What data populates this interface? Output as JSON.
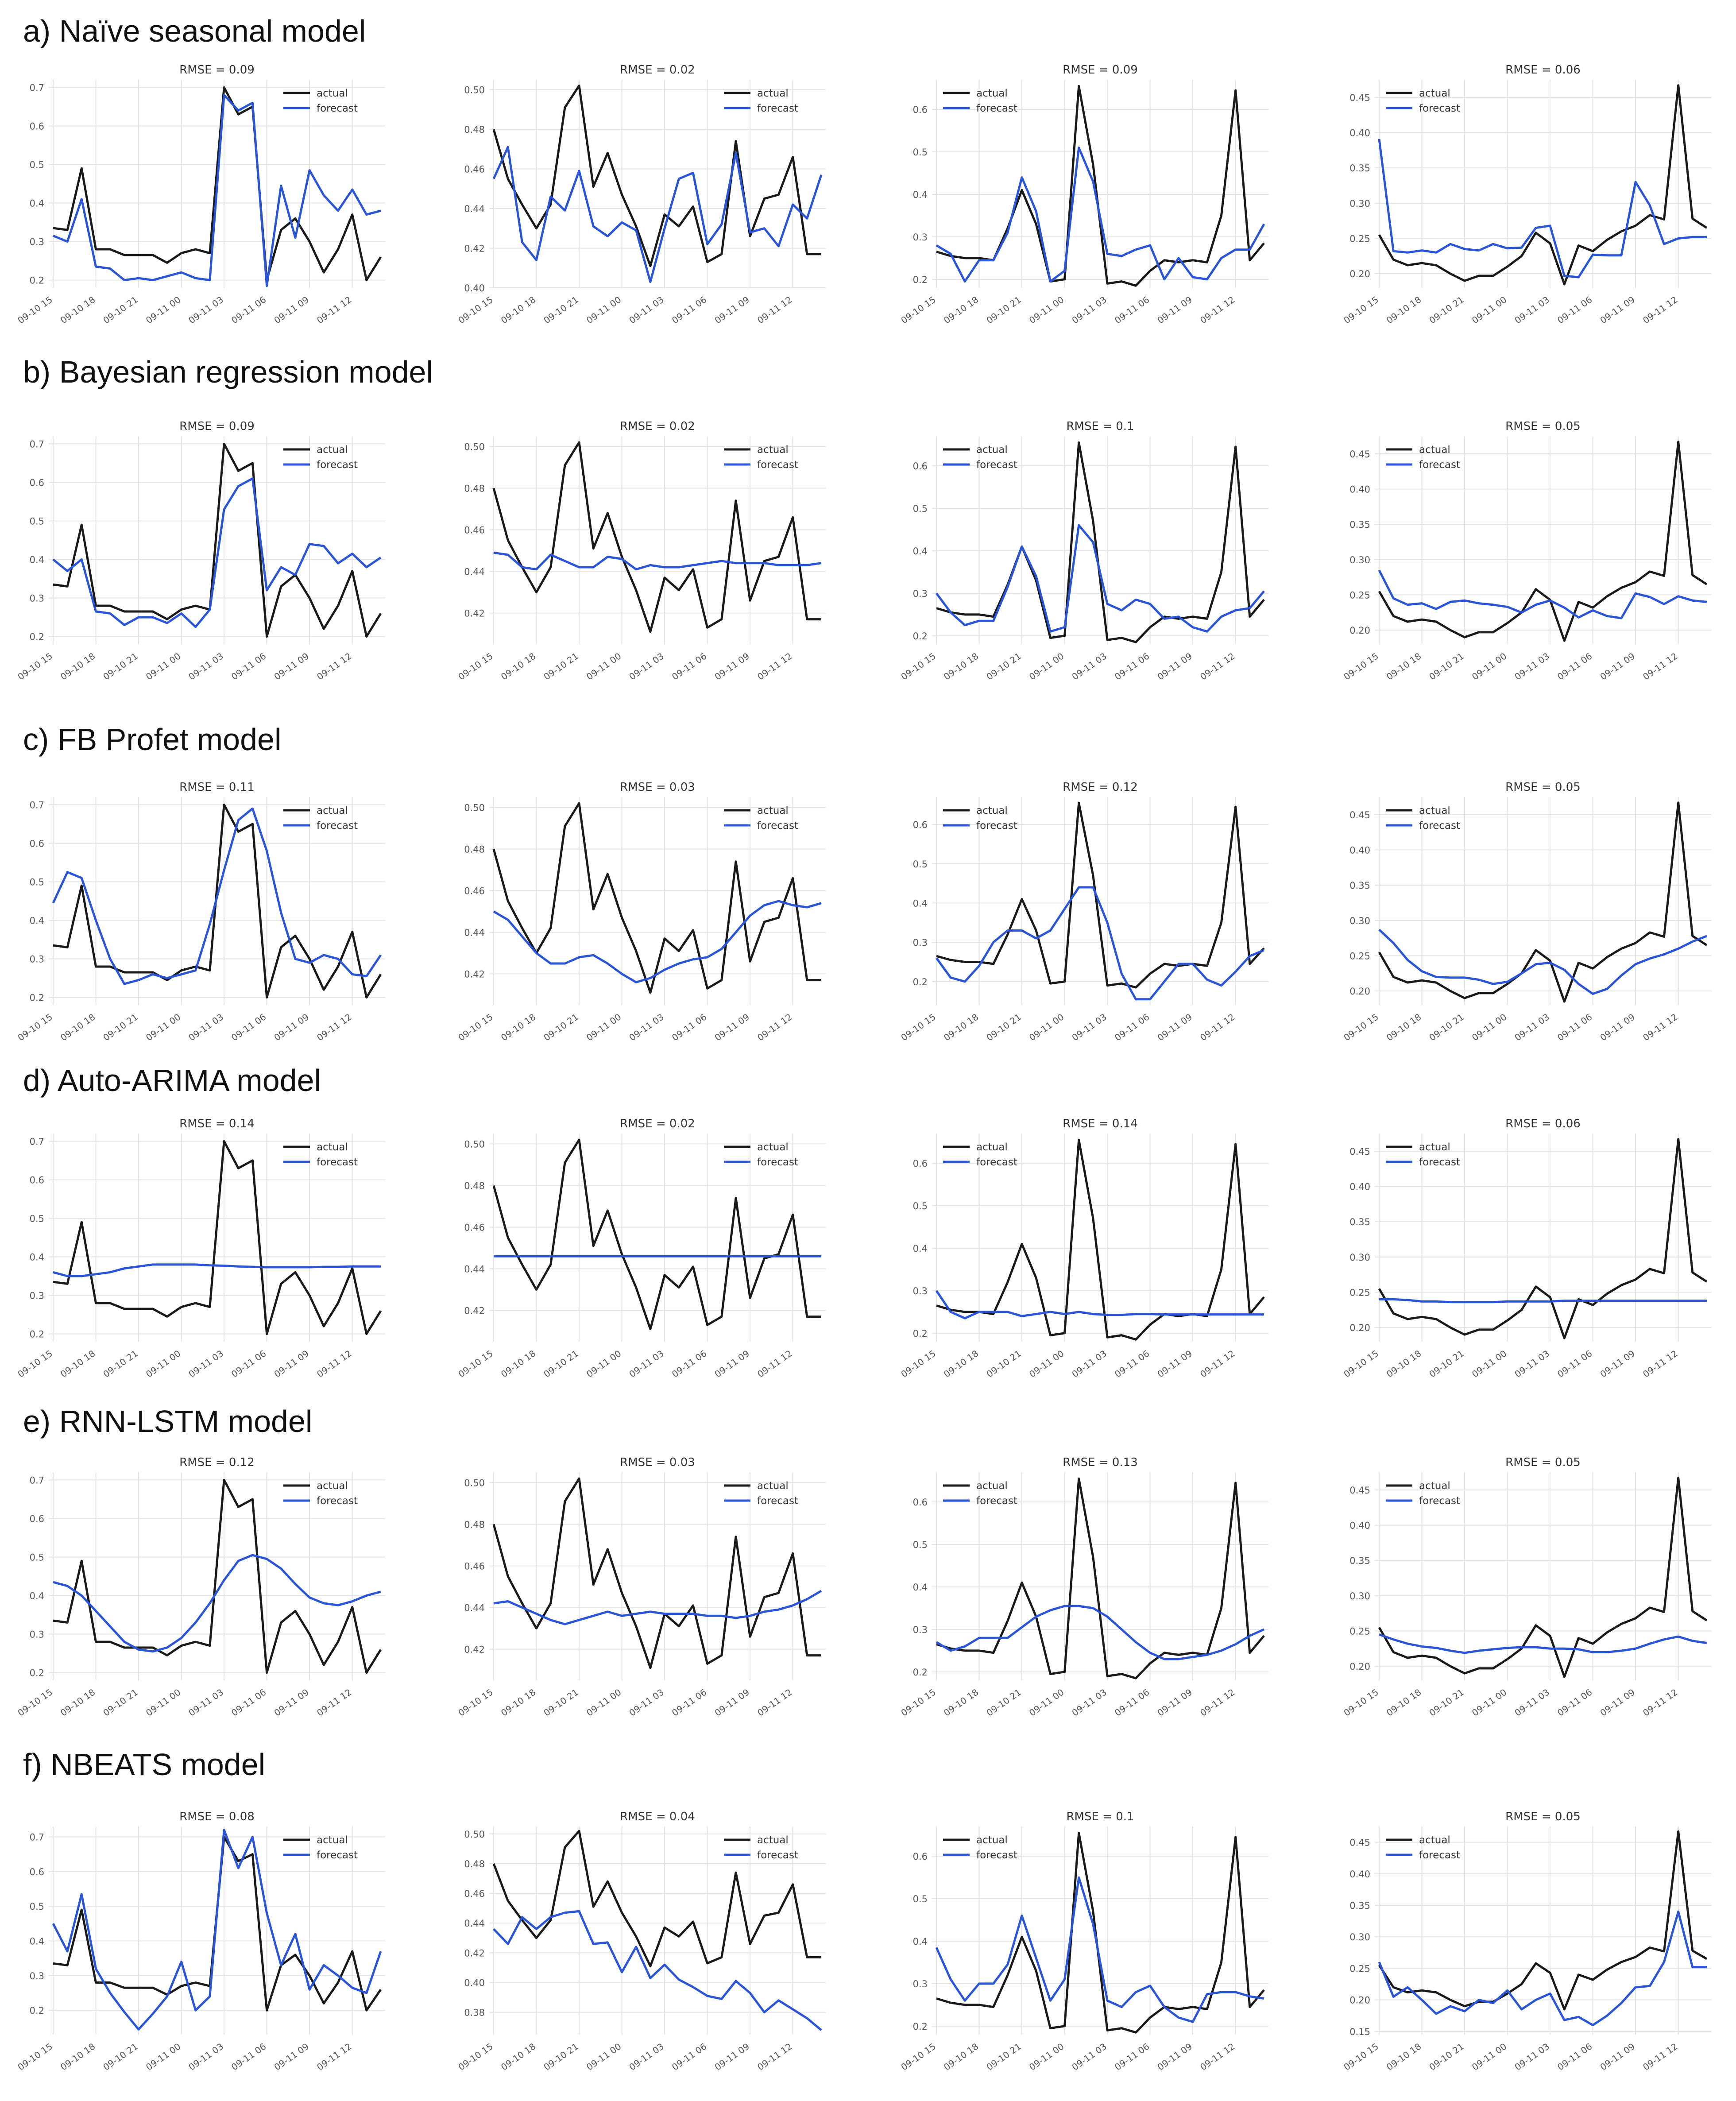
{
  "colors": {
    "actual": "#1a1a1a",
    "forecast": "#2a55d6",
    "grid": "#e3e3e3",
    "tick": "#555555"
  },
  "legend": {
    "actual": "actual",
    "forecast": "forecast"
  },
  "xticks": [
    "09-10 15",
    "09-10 18",
    "09-10 21",
    "09-11 00",
    "09-11 03",
    "09-11 06",
    "09-11 09",
    "09-11 12"
  ],
  "series_meta": {
    "n_points": 24,
    "first_tick_index": 0,
    "tick_step": 3
  },
  "actual": [
    [
      0.335,
      0.33,
      0.49,
      0.28,
      0.28,
      0.265,
      0.265,
      0.265,
      0.245,
      0.27,
      0.28,
      0.27,
      0.7,
      0.63,
      0.65,
      0.2,
      0.33,
      0.36,
      0.3,
      0.22,
      0.28,
      0.37,
      0.2,
      0.26
    ],
    [
      0.48,
      0.455,
      0.442,
      0.43,
      0.442,
      0.491,
      0.502,
      0.451,
      0.468,
      0.447,
      0.431,
      0.411,
      0.437,
      0.431,
      0.441,
      0.413,
      0.417,
      0.474,
      0.426,
      0.445,
      0.447,
      0.466,
      0.417,
      0.417
    ],
    [
      0.265,
      0.255,
      0.25,
      0.25,
      0.245,
      0.32,
      0.41,
      0.33,
      0.195,
      0.2,
      0.655,
      0.47,
      0.19,
      0.195,
      0.185,
      0.22,
      0.245,
      0.24,
      0.245,
      0.24,
      0.35,
      0.645,
      0.245,
      0.285
    ],
    [
      0.255,
      0.22,
      0.212,
      0.215,
      0.212,
      0.2,
      0.19,
      0.197,
      0.197,
      0.21,
      0.225,
      0.258,
      0.243,
      0.185,
      0.24,
      0.232,
      0.248,
      0.26,
      0.268,
      0.283,
      0.277,
      0.467,
      0.278,
      0.265
    ]
  ],
  "rows": [
    {
      "title": "a) Naïve seasonal model",
      "charts": [
        {
          "rmse": "RMSE = 0.09",
          "forecast": [
            0.315,
            0.3,
            0.41,
            0.235,
            0.23,
            0.2,
            0.205,
            0.2,
            0.21,
            0.22,
            0.205,
            0.2,
            0.68,
            0.64,
            0.66,
            0.185,
            0.445,
            0.31,
            0.485,
            0.42,
            0.38,
            0.435,
            0.37,
            0.38
          ]
        },
        {
          "rmse": "RMSE = 0.02",
          "forecast": [
            0.455,
            0.471,
            0.423,
            0.414,
            0.446,
            0.439,
            0.459,
            0.431,
            0.426,
            0.433,
            0.429,
            0.403,
            0.43,
            0.455,
            0.458,
            0.422,
            0.432,
            0.468,
            0.428,
            0.43,
            0.421,
            0.442,
            0.435,
            0.457
          ]
        },
        {
          "rmse": "RMSE = 0.09",
          "forecast": [
            0.28,
            0.26,
            0.195,
            0.245,
            0.245,
            0.31,
            0.44,
            0.36,
            0.195,
            0.22,
            0.51,
            0.43,
            0.26,
            0.255,
            0.27,
            0.28,
            0.2,
            0.25,
            0.205,
            0.2,
            0.25,
            0.27,
            0.27,
            0.33
          ]
        },
        {
          "rmse": "RMSE = 0.06",
          "forecast": [
            0.391,
            0.232,
            0.23,
            0.233,
            0.23,
            0.242,
            0.235,
            0.233,
            0.242,
            0.236,
            0.237,
            0.265,
            0.268,
            0.197,
            0.195,
            0.227,
            0.226,
            0.226,
            0.33,
            0.297,
            0.242,
            0.25,
            0.252,
            0.252
          ]
        }
      ]
    },
    {
      "title": "b) Bayesian regression model",
      "charts": [
        {
          "rmse": "RMSE = 0.09",
          "forecast": [
            0.4,
            0.37,
            0.4,
            0.265,
            0.26,
            0.23,
            0.25,
            0.25,
            0.235,
            0.26,
            0.225,
            0.27,
            0.53,
            0.59,
            0.61,
            0.32,
            0.38,
            0.36,
            0.44,
            0.435,
            0.39,
            0.415,
            0.38,
            0.405
          ]
        },
        {
          "rmse": "RMSE = 0.02",
          "forecast": [
            0.449,
            0.448,
            0.442,
            0.441,
            0.448,
            0.445,
            0.442,
            0.442,
            0.447,
            0.446,
            0.441,
            0.443,
            0.442,
            0.442,
            0.443,
            0.444,
            0.445,
            0.444,
            0.444,
            0.444,
            0.443,
            0.443,
            0.443,
            0.444
          ]
        },
        {
          "rmse": "RMSE = 0.1",
          "forecast": [
            0.3,
            0.255,
            0.225,
            0.235,
            0.235,
            0.315,
            0.41,
            0.34,
            0.21,
            0.22,
            0.46,
            0.42,
            0.275,
            0.26,
            0.285,
            0.275,
            0.24,
            0.245,
            0.22,
            0.21,
            0.245,
            0.26,
            0.265,
            0.305
          ]
        },
        {
          "rmse": "RMSE = 0.05",
          "forecast": [
            0.285,
            0.245,
            0.236,
            0.238,
            0.23,
            0.24,
            0.242,
            0.238,
            0.236,
            0.233,
            0.225,
            0.236,
            0.242,
            0.232,
            0.218,
            0.228,
            0.22,
            0.217,
            0.252,
            0.247,
            0.237,
            0.248,
            0.242,
            0.24
          ]
        }
      ]
    },
    {
      "title": "c) FB Profet  model",
      "charts": [
        {
          "rmse": "RMSE = 0.11",
          "forecast": [
            0.445,
            0.525,
            0.51,
            0.4,
            0.3,
            0.235,
            0.245,
            0.26,
            0.25,
            0.26,
            0.27,
            0.39,
            0.53,
            0.66,
            0.69,
            0.58,
            0.42,
            0.3,
            0.29,
            0.31,
            0.3,
            0.26,
            0.255,
            0.31
          ]
        },
        {
          "rmse": "RMSE = 0.03",
          "forecast": [
            0.45,
            0.446,
            0.438,
            0.43,
            0.425,
            0.425,
            0.428,
            0.429,
            0.425,
            0.42,
            0.416,
            0.418,
            0.422,
            0.425,
            0.427,
            0.428,
            0.432,
            0.44,
            0.448,
            0.453,
            0.455,
            0.453,
            0.452,
            0.454
          ]
        },
        {
          "rmse": "RMSE = 0.12",
          "forecast": [
            0.26,
            0.21,
            0.2,
            0.24,
            0.3,
            0.33,
            0.33,
            0.31,
            0.33,
            0.385,
            0.44,
            0.44,
            0.35,
            0.22,
            0.155,
            0.155,
            0.2,
            0.245,
            0.245,
            0.205,
            0.19,
            0.225,
            0.265,
            0.28
          ]
        },
        {
          "rmse": "RMSE = 0.05",
          "forecast": [
            0.287,
            0.268,
            0.244,
            0.228,
            0.22,
            0.219,
            0.219,
            0.216,
            0.21,
            0.213,
            0.225,
            0.238,
            0.24,
            0.23,
            0.21,
            0.196,
            0.203,
            0.222,
            0.238,
            0.246,
            0.252,
            0.26,
            0.27,
            0.278
          ]
        }
      ]
    },
    {
      "title": "d) Auto-ARIMA model",
      "charts": [
        {
          "rmse": "RMSE = 0.14",
          "forecast": [
            0.36,
            0.35,
            0.35,
            0.355,
            0.36,
            0.37,
            0.375,
            0.38,
            0.38,
            0.38,
            0.38,
            0.378,
            0.377,
            0.375,
            0.374,
            0.373,
            0.373,
            0.373,
            0.373,
            0.374,
            0.374,
            0.375,
            0.375,
            0.375
          ]
        },
        {
          "rmse": "RMSE = 0.02",
          "forecast": [
            0.446,
            0.446,
            0.446,
            0.446,
            0.446,
            0.446,
            0.446,
            0.446,
            0.446,
            0.446,
            0.446,
            0.446,
            0.446,
            0.446,
            0.446,
            0.446,
            0.446,
            0.446,
            0.446,
            0.446,
            0.446,
            0.446,
            0.446,
            0.446
          ]
        },
        {
          "rmse": "RMSE = 0.14",
          "forecast": [
            0.3,
            0.25,
            0.235,
            0.25,
            0.25,
            0.25,
            0.24,
            0.245,
            0.25,
            0.245,
            0.25,
            0.245,
            0.243,
            0.243,
            0.245,
            0.245,
            0.244,
            0.244,
            0.244,
            0.244,
            0.244,
            0.244,
            0.244,
            0.244
          ]
        },
        {
          "rmse": "RMSE = 0.06",
          "forecast": [
            0.24,
            0.24,
            0.239,
            0.237,
            0.237,
            0.236,
            0.236,
            0.236,
            0.236,
            0.237,
            0.237,
            0.237,
            0.237,
            0.238,
            0.238,
            0.238,
            0.238,
            0.238,
            0.238,
            0.238,
            0.238,
            0.238,
            0.238,
            0.238
          ]
        }
      ]
    },
    {
      "title": "e) RNN-LSTM model",
      "charts": [
        {
          "rmse": "RMSE = 0.12",
          "forecast": [
            0.435,
            0.425,
            0.4,
            0.36,
            0.32,
            0.28,
            0.26,
            0.255,
            0.265,
            0.29,
            0.33,
            0.38,
            0.44,
            0.49,
            0.505,
            0.495,
            0.47,
            0.43,
            0.395,
            0.38,
            0.375,
            0.385,
            0.4,
            0.41
          ]
        },
        {
          "rmse": "RMSE = 0.03",
          "forecast": [
            0.442,
            0.443,
            0.44,
            0.437,
            0.434,
            0.432,
            0.434,
            0.436,
            0.438,
            0.436,
            0.437,
            0.438,
            0.437,
            0.437,
            0.437,
            0.436,
            0.436,
            0.435,
            0.436,
            0.438,
            0.439,
            0.441,
            0.444,
            0.448
          ]
        },
        {
          "rmse": "RMSE = 0.13",
          "forecast": [
            0.27,
            0.25,
            0.26,
            0.28,
            0.28,
            0.28,
            0.305,
            0.33,
            0.345,
            0.355,
            0.355,
            0.35,
            0.33,
            0.3,
            0.27,
            0.245,
            0.23,
            0.23,
            0.235,
            0.24,
            0.25,
            0.265,
            0.285,
            0.3
          ]
        },
        {
          "rmse": "RMSE = 0.05",
          "forecast": [
            0.245,
            0.238,
            0.232,
            0.228,
            0.226,
            0.222,
            0.219,
            0.222,
            0.224,
            0.226,
            0.227,
            0.227,
            0.225,
            0.225,
            0.224,
            0.22,
            0.22,
            0.222,
            0.225,
            0.232,
            0.238,
            0.242,
            0.236,
            0.233
          ]
        }
      ]
    },
    {
      "title": "f) NBEATS model",
      "charts": [
        {
          "rmse": "RMSE = 0.08",
          "forecast": [
            0.45,
            0.37,
            0.535,
            0.32,
            0.25,
            0.195,
            0.145,
            0.19,
            0.24,
            0.34,
            0.2,
            0.24,
            0.72,
            0.61,
            0.7,
            0.48,
            0.33,
            0.42,
            0.26,
            0.33,
            0.3,
            0.265,
            0.25,
            0.37
          ]
        },
        {
          "rmse": "RMSE = 0.04",
          "forecast": [
            0.436,
            0.426,
            0.444,
            0.436,
            0.444,
            0.447,
            0.448,
            0.426,
            0.427,
            0.407,
            0.424,
            0.403,
            0.412,
            0.402,
            0.397,
            0.391,
            0.389,
            0.401,
            0.393,
            0.38,
            0.388,
            0.382,
            0.376,
            0.368
          ]
        },
        {
          "rmse": "RMSE = 0.1",
          "forecast": [
            0.385,
            0.31,
            0.26,
            0.3,
            0.3,
            0.345,
            0.46,
            0.36,
            0.26,
            0.31,
            0.55,
            0.44,
            0.26,
            0.245,
            0.28,
            0.295,
            0.245,
            0.22,
            0.21,
            0.275,
            0.28,
            0.28,
            0.27,
            0.265
          ]
        },
        {
          "rmse": "RMSE = 0.05",
          "forecast": [
            0.26,
            0.205,
            0.22,
            0.2,
            0.178,
            0.19,
            0.182,
            0.2,
            0.195,
            0.215,
            0.185,
            0.2,
            0.21,
            0.168,
            0.173,
            0.16,
            0.175,
            0.195,
            0.22,
            0.222,
            0.26,
            0.34,
            0.252,
            0.252
          ]
        }
      ]
    }
  ],
  "yaxes": [
    [
      {
        "ymin": 0.18,
        "ymax": 0.72,
        "ticks": [
          0.2,
          0.3,
          0.4,
          0.5,
          0.6,
          0.7
        ]
      },
      {
        "ymin": 0.4,
        "ymax": 0.505,
        "ticks": [
          0.4,
          0.42,
          0.44,
          0.46,
          0.48,
          0.5
        ]
      },
      {
        "ymin": 0.18,
        "ymax": 0.67,
        "ticks": [
          0.2,
          0.3,
          0.4,
          0.5,
          0.6
        ]
      },
      {
        "ymin": 0.18,
        "ymax": 0.475,
        "ticks": [
          0.2,
          0.25,
          0.3,
          0.35,
          0.4,
          0.45
        ]
      }
    ],
    [
      {
        "ymin": 0.18,
        "ymax": 0.72,
        "ticks": [
          0.2,
          0.3,
          0.4,
          0.5,
          0.6,
          0.7
        ]
      },
      {
        "ymin": 0.405,
        "ymax": 0.505,
        "ticks": [
          0.42,
          0.44,
          0.46,
          0.48,
          0.5
        ]
      },
      {
        "ymin": 0.18,
        "ymax": 0.67,
        "ticks": [
          0.2,
          0.3,
          0.4,
          0.5,
          0.6
        ]
      },
      {
        "ymin": 0.18,
        "ymax": 0.475,
        "ticks": [
          0.2,
          0.25,
          0.3,
          0.35,
          0.4,
          0.45
        ]
      }
    ],
    [
      {
        "ymin": 0.18,
        "ymax": 0.72,
        "ticks": [
          0.2,
          0.3,
          0.4,
          0.5,
          0.6,
          0.7
        ]
      },
      {
        "ymin": 0.405,
        "ymax": 0.505,
        "ticks": [
          0.42,
          0.44,
          0.46,
          0.48,
          0.5
        ]
      },
      {
        "ymin": 0.14,
        "ymax": 0.67,
        "ticks": [
          0.2,
          0.3,
          0.4,
          0.5,
          0.6
        ]
      },
      {
        "ymin": 0.18,
        "ymax": 0.475,
        "ticks": [
          0.2,
          0.25,
          0.3,
          0.35,
          0.4,
          0.45
        ]
      }
    ],
    [
      {
        "ymin": 0.18,
        "ymax": 0.72,
        "ticks": [
          0.2,
          0.3,
          0.4,
          0.5,
          0.6,
          0.7
        ]
      },
      {
        "ymin": 0.405,
        "ymax": 0.505,
        "ticks": [
          0.42,
          0.44,
          0.46,
          0.48,
          0.5
        ]
      },
      {
        "ymin": 0.18,
        "ymax": 0.67,
        "ticks": [
          0.2,
          0.3,
          0.4,
          0.5,
          0.6
        ]
      },
      {
        "ymin": 0.18,
        "ymax": 0.475,
        "ticks": [
          0.2,
          0.25,
          0.3,
          0.35,
          0.4,
          0.45
        ]
      }
    ],
    [
      {
        "ymin": 0.18,
        "ymax": 0.72,
        "ticks": [
          0.2,
          0.3,
          0.4,
          0.5,
          0.6,
          0.7
        ]
      },
      {
        "ymin": 0.405,
        "ymax": 0.505,
        "ticks": [
          0.42,
          0.44,
          0.46,
          0.48,
          0.5
        ]
      },
      {
        "ymin": 0.18,
        "ymax": 0.67,
        "ticks": [
          0.2,
          0.3,
          0.4,
          0.5,
          0.6
        ]
      },
      {
        "ymin": 0.18,
        "ymax": 0.475,
        "ticks": [
          0.2,
          0.25,
          0.3,
          0.35,
          0.4,
          0.45
        ]
      }
    ],
    [
      {
        "ymin": 0.13,
        "ymax": 0.73,
        "ticks": [
          0.2,
          0.3,
          0.4,
          0.5,
          0.6,
          0.7
        ]
      },
      {
        "ymin": 0.365,
        "ymax": 0.505,
        "ticks": [
          0.38,
          0.4,
          0.42,
          0.44,
          0.46,
          0.48,
          0.5
        ]
      },
      {
        "ymin": 0.18,
        "ymax": 0.67,
        "ticks": [
          0.2,
          0.3,
          0.4,
          0.5,
          0.6
        ]
      },
      {
        "ymin": 0.145,
        "ymax": 0.475,
        "ticks": [
          0.15,
          0.2,
          0.25,
          0.3,
          0.35,
          0.4,
          0.45
        ]
      }
    ]
  ],
  "chart_data": {
    "type": "line",
    "description_note": "6 rows x 4 columns grid of forecast vs actual line charts; series values per panel in rows[].charts[] and actual[]",
    "x": [
      "09-10 15",
      "09-10 18",
      "09-10 21",
      "09-11 00",
      "09-11 03",
      "09-11 06",
      "09-11 09",
      "09-11 12"
    ],
    "legend": [
      "actual",
      "forecast"
    ]
  }
}
